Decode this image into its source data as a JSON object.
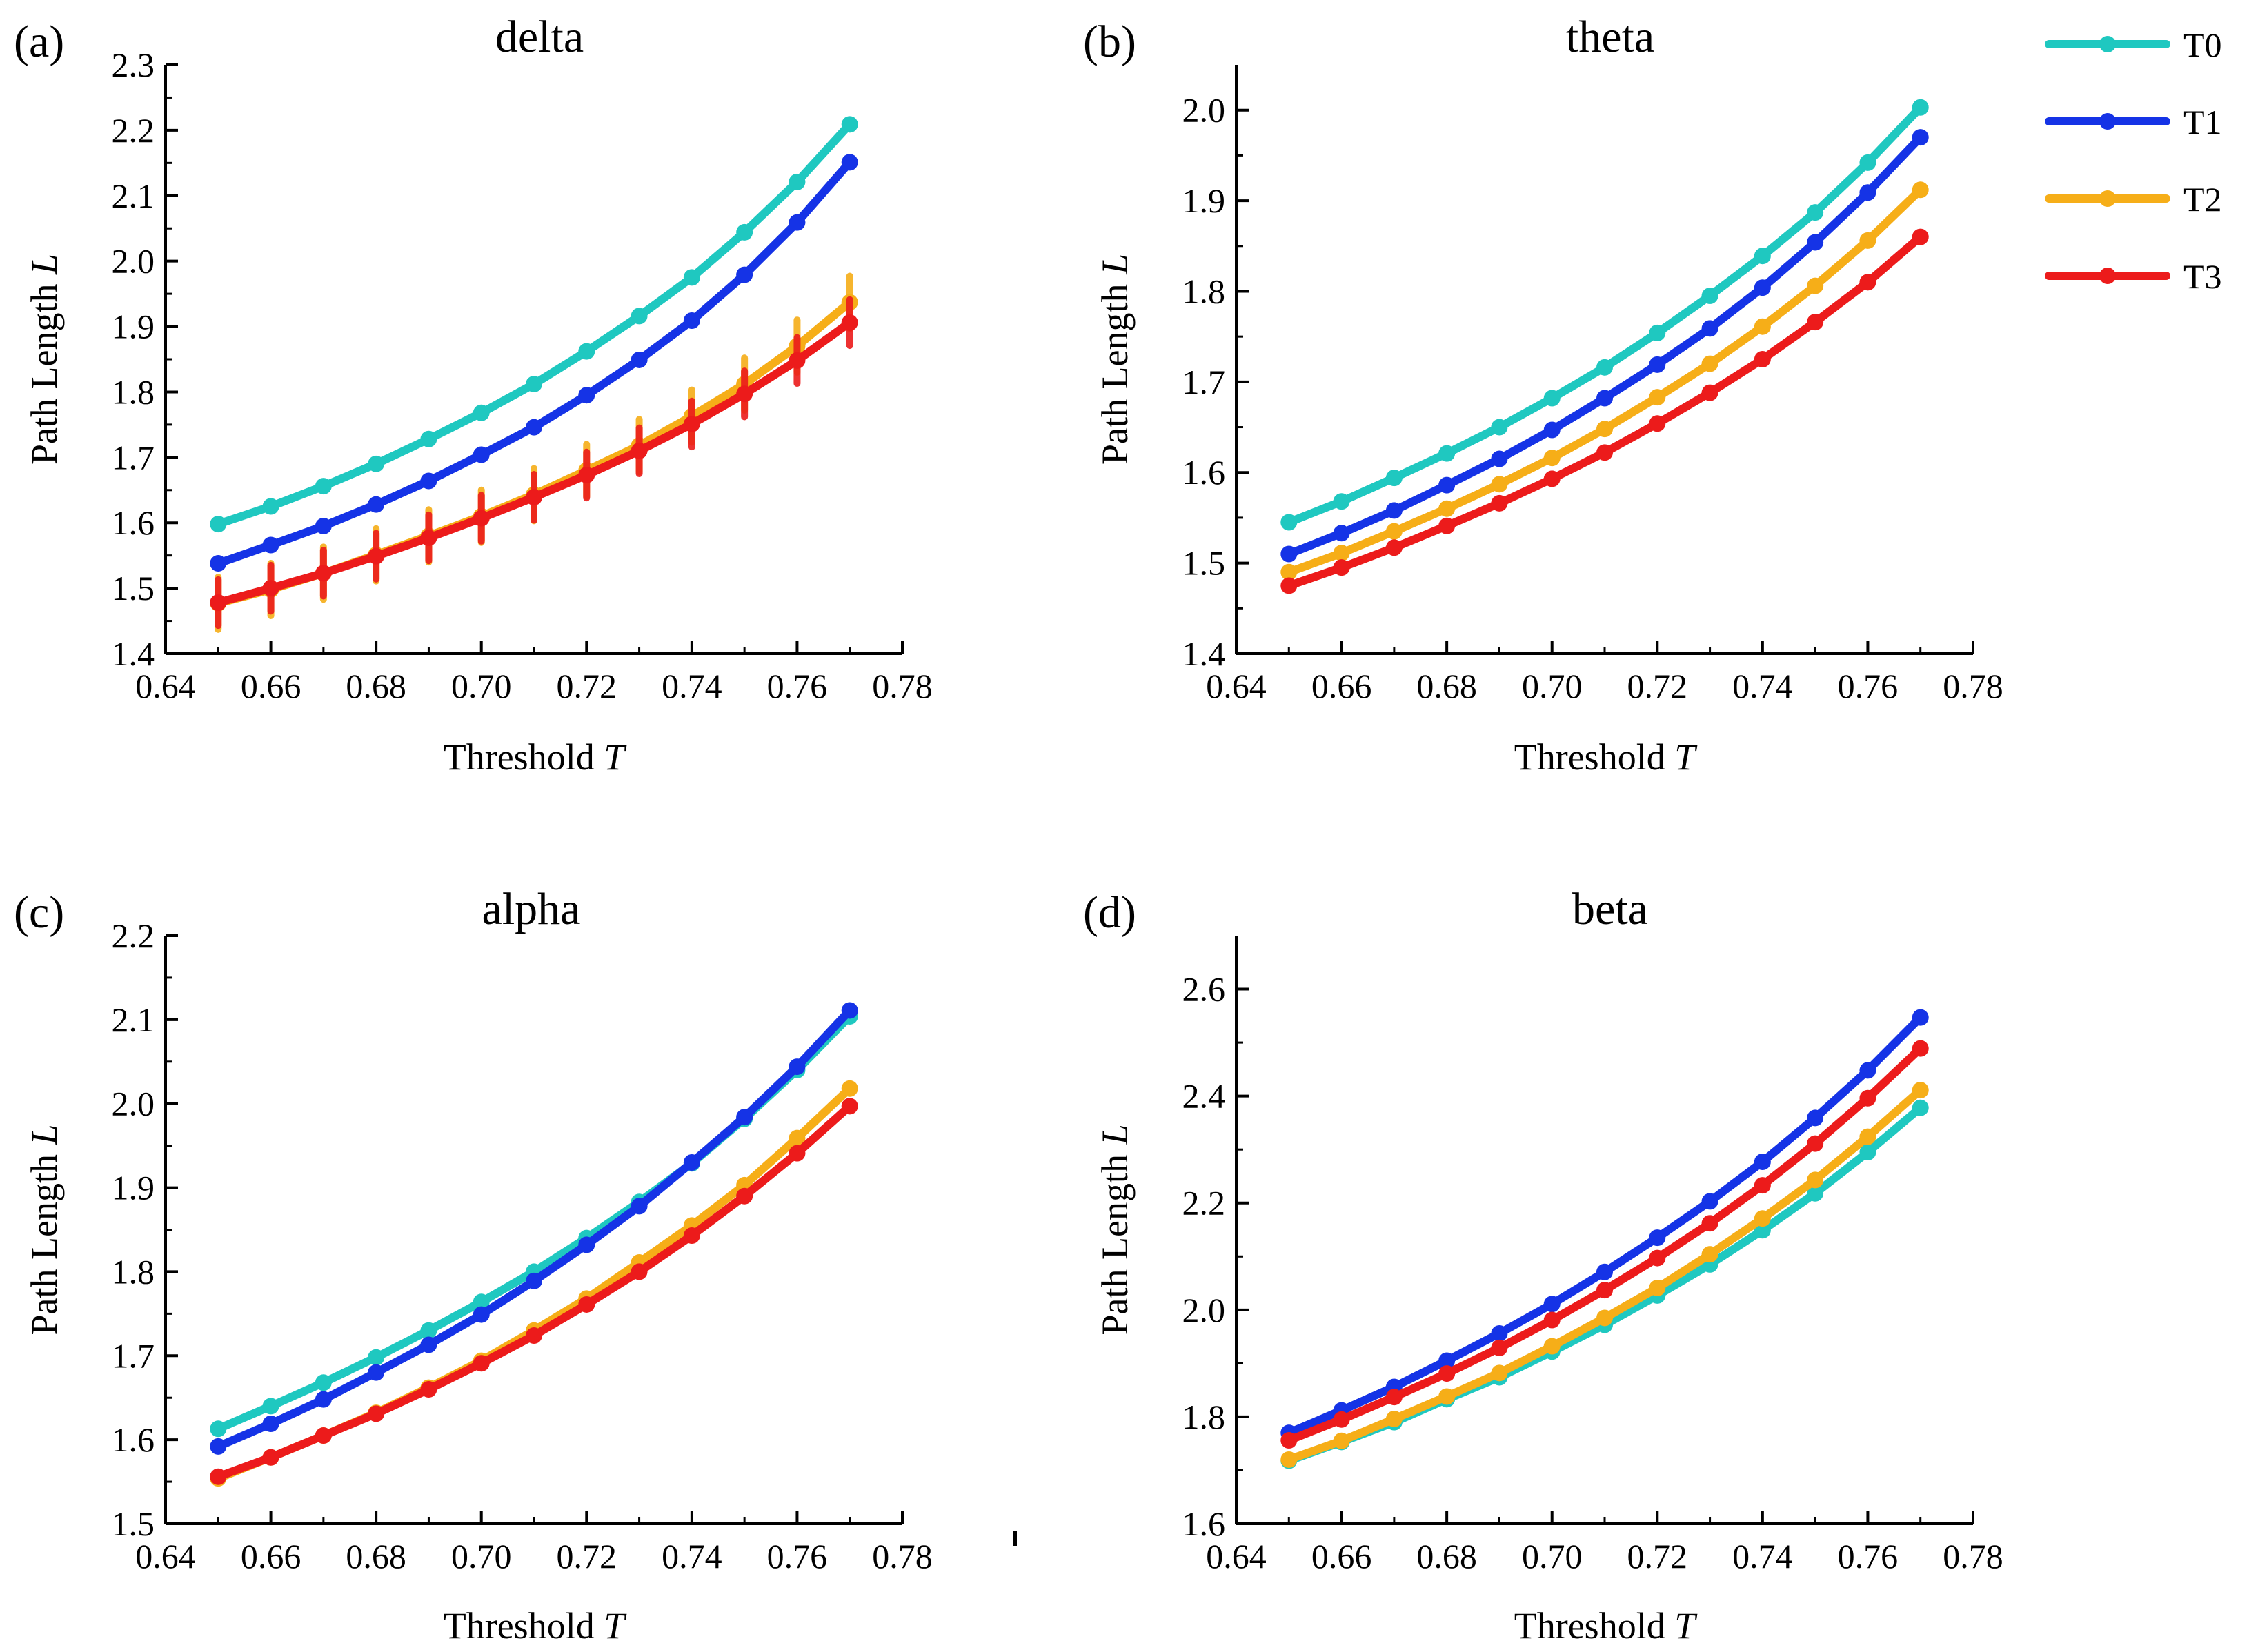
{
  "legend": [
    {
      "key": "T0",
      "label": "T0",
      "color": "#1fc8c0"
    },
    {
      "key": "T1",
      "label": "T1",
      "color": "#1533e6"
    },
    {
      "key": "T2",
      "label": "T2",
      "color": "#f6ae18"
    },
    {
      "key": "T3",
      "label": "T3",
      "color": "#ec1b1b"
    }
  ],
  "chart_data": [
    {
      "panel_label": "(a)",
      "title": "delta",
      "type": "line",
      "xlabel": "Threshold",
      "xlabel_var": "T",
      "ylabel": "Path Length",
      "ylabel_var": "L",
      "xlim": [
        0.64,
        0.78
      ],
      "ylim": [
        1.4,
        2.3
      ],
      "xticks": [
        0.64,
        0.66,
        0.68,
        0.7,
        0.72,
        0.74,
        0.76,
        0.78
      ],
      "xtick_labels": [
        "0.64",
        "0.66",
        "0.68",
        "0.70",
        "0.72",
        "0.74",
        "0.76",
        "0.78"
      ],
      "yticks": [
        1.4,
        1.5,
        1.6,
        1.7,
        1.8,
        1.9,
        2.0,
        2.1,
        2.2,
        2.3
      ],
      "ytick_labels": [
        "1.4",
        "1.5",
        "1.6",
        "1.7",
        "1.8",
        "1.9",
        "2.0",
        "2.1",
        "2.2",
        "2.3"
      ],
      "x": [
        0.65,
        0.66,
        0.67,
        0.68,
        0.69,
        0.7,
        0.71,
        0.72,
        0.73,
        0.74,
        0.75,
        0.76,
        0.77
      ],
      "series": [
        {
          "name": "T0",
          "values": [
            1.598,
            1.625,
            1.656,
            1.69,
            1.728,
            1.768,
            1.812,
            1.862,
            1.916,
            1.975,
            2.044,
            2.121,
            2.209
          ]
        },
        {
          "name": "T1",
          "values": [
            1.538,
            1.566,
            1.595,
            1.628,
            1.664,
            1.704,
            1.746,
            1.795,
            1.849,
            1.909,
            1.979,
            2.059,
            2.151
          ]
        },
        {
          "name": "T2",
          "values": [
            1.477,
            1.498,
            1.523,
            1.551,
            1.58,
            1.61,
            1.643,
            1.68,
            1.718,
            1.763,
            1.812,
            1.87,
            1.937
          ],
          "errors": [
            0.04,
            0.04,
            0.04,
            0.04,
            0.04,
            0.04,
            0.04,
            0.04,
            0.04,
            0.04,
            0.04,
            0.04,
            0.04
          ]
        },
        {
          "name": "T3",
          "values": [
            1.478,
            1.5,
            1.523,
            1.549,
            1.577,
            1.607,
            1.639,
            1.673,
            1.71,
            1.751,
            1.797,
            1.848,
            1.906
          ],
          "errors": [
            0.035,
            0.035,
            0.035,
            0.035,
            0.035,
            0.035,
            0.035,
            0.035,
            0.035,
            0.035,
            0.035,
            0.035,
            0.035
          ]
        }
      ]
    },
    {
      "panel_label": "(b)",
      "title": "theta",
      "type": "line",
      "xlabel": "Threshold",
      "xlabel_var": "T",
      "ylabel": "Path Length",
      "ylabel_var": "L",
      "xlim": [
        0.64,
        0.78
      ],
      "ylim": [
        1.4,
        2.05
      ],
      "xticks": [
        0.64,
        0.66,
        0.68,
        0.7,
        0.72,
        0.74,
        0.76,
        0.78
      ],
      "xtick_labels": [
        "0.64",
        "0.66",
        "0.68",
        "0.70",
        "0.72",
        "0.74",
        "0.76",
        "0.78"
      ],
      "yticks": [
        1.4,
        1.5,
        1.6,
        1.7,
        1.8,
        1.9,
        2.0
      ],
      "ytick_labels": [
        "1.4",
        "1.5",
        "1.6",
        "1.7",
        "1.8",
        "1.9",
        "2.0"
      ],
      "x": [
        0.65,
        0.66,
        0.67,
        0.68,
        0.69,
        0.7,
        0.71,
        0.72,
        0.73,
        0.74,
        0.75,
        0.76,
        0.77
      ],
      "series": [
        {
          "name": "T0",
          "values": [
            1.545,
            1.568,
            1.594,
            1.621,
            1.65,
            1.682,
            1.716,
            1.754,
            1.795,
            1.839,
            1.887,
            1.942,
            2.003
          ]
        },
        {
          "name": "T1",
          "values": [
            1.51,
            1.533,
            1.558,
            1.586,
            1.615,
            1.647,
            1.682,
            1.719,
            1.759,
            1.804,
            1.854,
            1.909,
            1.97
          ]
        },
        {
          "name": "T2",
          "values": [
            1.49,
            1.511,
            1.535,
            1.56,
            1.587,
            1.616,
            1.648,
            1.683,
            1.72,
            1.761,
            1.806,
            1.856,
            1.912
          ]
        },
        {
          "name": "T3",
          "values": [
            1.475,
            1.495,
            1.517,
            1.541,
            1.566,
            1.593,
            1.622,
            1.654,
            1.688,
            1.725,
            1.766,
            1.81,
            1.86
          ]
        }
      ]
    },
    {
      "panel_label": "(c)",
      "title": "alpha",
      "type": "line",
      "xlabel": "Threshold",
      "xlabel_var": "T",
      "ylabel": "Path Length",
      "ylabel_var": "L",
      "xlim": [
        0.64,
        0.78
      ],
      "ylim": [
        1.5,
        2.2
      ],
      "xticks": [
        0.64,
        0.66,
        0.68,
        0.7,
        0.72,
        0.74,
        0.76,
        0.78
      ],
      "xtick_labels": [
        "0.64",
        "0.66",
        "0.68",
        "0.70",
        "0.72",
        "0.74",
        "0.76",
        "0.78"
      ],
      "yticks": [
        1.5,
        1.6,
        1.7,
        1.8,
        1.9,
        2.0,
        2.1,
        2.2
      ],
      "ytick_labels": [
        "1.5",
        "1.6",
        "1.7",
        "1.8",
        "1.9",
        "2.0",
        "2.1",
        "2.2"
      ],
      "x": [
        0.65,
        0.66,
        0.67,
        0.68,
        0.69,
        0.7,
        0.71,
        0.72,
        0.73,
        0.74,
        0.75,
        0.76,
        0.77
      ],
      "series": [
        {
          "name": "T0",
          "values": [
            1.613,
            1.64,
            1.668,
            1.698,
            1.73,
            1.764,
            1.8,
            1.84,
            1.883,
            1.929,
            1.982,
            2.04,
            2.104
          ]
        },
        {
          "name": "T1",
          "values": [
            1.592,
            1.619,
            1.648,
            1.68,
            1.713,
            1.749,
            1.789,
            1.832,
            1.878,
            1.93,
            1.984,
            2.044,
            2.111
          ]
        },
        {
          "name": "T2",
          "values": [
            1.554,
            1.579,
            1.605,
            1.632,
            1.662,
            1.694,
            1.73,
            1.768,
            1.811,
            1.855,
            1.903,
            1.959,
            2.018
          ]
        },
        {
          "name": "T3",
          "values": [
            1.556,
            1.579,
            1.605,
            1.631,
            1.66,
            1.691,
            1.724,
            1.761,
            1.8,
            1.843,
            1.89,
            1.941,
            1.997
          ]
        }
      ]
    },
    {
      "panel_label": "(d)",
      "title": "beta",
      "type": "line",
      "xlabel": "Threshold",
      "xlabel_var": "T",
      "ylabel": "Path Length",
      "ylabel_var": "L",
      "xlim": [
        0.64,
        0.78
      ],
      "ylim": [
        1.6,
        2.7
      ],
      "xticks": [
        0.64,
        0.66,
        0.68,
        0.7,
        0.72,
        0.74,
        0.76,
        0.78
      ],
      "xtick_labels": [
        "0.64",
        "0.66",
        "0.68",
        "0.70",
        "0.72",
        "0.74",
        "0.76",
        "0.78"
      ],
      "yticks": [
        1.6,
        1.8,
        2.0,
        2.2,
        2.4,
        2.6
      ],
      "ytick_labels": [
        "1.6",
        "1.8",
        "2.0",
        "2.2",
        "2.4",
        "2.6"
      ],
      "x": [
        0.65,
        0.66,
        0.67,
        0.68,
        0.69,
        0.7,
        0.71,
        0.72,
        0.73,
        0.74,
        0.75,
        0.76,
        0.77
      ],
      "series": [
        {
          "name": "T0",
          "values": [
            1.718,
            1.753,
            1.79,
            1.833,
            1.874,
            1.922,
            1.972,
            2.027,
            2.085,
            2.149,
            2.218,
            2.295,
            2.378
          ]
        },
        {
          "name": "T1",
          "values": [
            1.77,
            1.812,
            1.856,
            1.905,
            1.956,
            2.011,
            2.071,
            2.135,
            2.203,
            2.277,
            2.359,
            2.448,
            2.547
          ]
        },
        {
          "name": "T2",
          "values": [
            1.72,
            1.755,
            1.796,
            1.838,
            1.882,
            1.932,
            1.985,
            2.041,
            2.104,
            2.171,
            2.243,
            2.324,
            2.411
          ]
        },
        {
          "name": "T3",
          "values": [
            1.756,
            1.795,
            1.837,
            1.881,
            1.929,
            1.981,
            2.037,
            2.097,
            2.162,
            2.233,
            2.311,
            2.396,
            2.489
          ]
        }
      ]
    }
  ]
}
